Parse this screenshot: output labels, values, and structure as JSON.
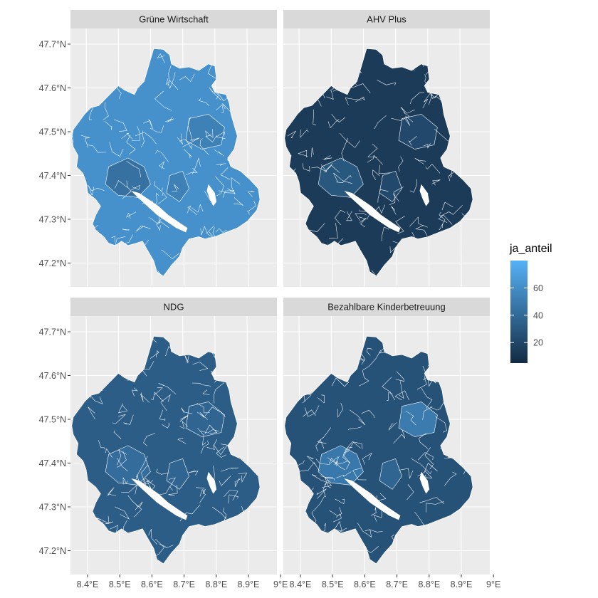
{
  "figure": {
    "facets": [
      {
        "title": "Grüne Wirtschaft",
        "base_value": 62,
        "hotspot_value": 44
      },
      {
        "title": "AHV Plus",
        "base_value": 14,
        "hotspot_value": 30
      },
      {
        "title": "NDG",
        "base_value": 33,
        "hotspot_value": 42
      },
      {
        "title": "Bezahlbare Kinderbetreuung",
        "base_value": 27,
        "hotspot_value": 48
      }
    ],
    "x_axis": {
      "ticks": [
        {
          "value": 8.4,
          "label": "8.4°E"
        },
        {
          "value": 8.5,
          "label": "8.5°E"
        },
        {
          "value": 8.6,
          "label": "8.6°E"
        },
        {
          "value": 8.7,
          "label": "8.7°E"
        },
        {
          "value": 8.8,
          "label": "8.8°E"
        },
        {
          "value": 8.9,
          "label": "8.9°E"
        },
        {
          "value": 9.0,
          "label": "9°E"
        }
      ]
    },
    "y_axis": {
      "ticks": [
        {
          "value": 47.7,
          "label": "47.7°N"
        },
        {
          "value": 47.6,
          "label": "47.6°N"
        },
        {
          "value": 47.5,
          "label": "47.5°N"
        },
        {
          "value": 47.4,
          "label": "47.4°N"
        },
        {
          "value": 47.3,
          "label": "47.3°N"
        },
        {
          "value": 47.2,
          "label": "47.2°N"
        }
      ]
    },
    "legend": {
      "title": "ja_anteil",
      "min": 5,
      "max": 80,
      "low_color": "#132b43",
      "high_color": "#56b1f7",
      "breaks": [
        {
          "value": 60,
          "label": "60"
        },
        {
          "value": 40,
          "label": "40"
        },
        {
          "value": 20,
          "label": "20"
        }
      ]
    },
    "colors": {
      "panel_background": "#ebebeb",
      "grid": "#ffffff",
      "strip_background": "#d9d9d9",
      "border_lines": "#ffffff"
    }
  }
}
